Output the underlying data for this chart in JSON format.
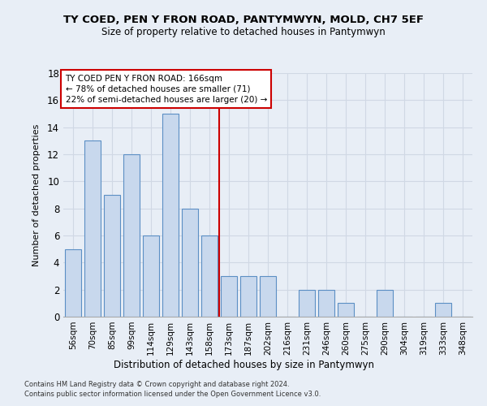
{
  "title": "TY COED, PEN Y FRON ROAD, PANTYMWYN, MOLD, CH7 5EF",
  "subtitle": "Size of property relative to detached houses in Pantymwyn",
  "xlabel": "Distribution of detached houses by size in Pantymwyn",
  "ylabel": "Number of detached properties",
  "categories": [
    "56sqm",
    "70sqm",
    "85sqm",
    "99sqm",
    "114sqm",
    "129sqm",
    "143sqm",
    "158sqm",
    "173sqm",
    "187sqm",
    "202sqm",
    "216sqm",
    "231sqm",
    "246sqm",
    "260sqm",
    "275sqm",
    "290sqm",
    "304sqm",
    "319sqm",
    "333sqm",
    "348sqm"
  ],
  "values": [
    5,
    13,
    9,
    12,
    6,
    15,
    8,
    6,
    3,
    3,
    3,
    0,
    2,
    2,
    1,
    0,
    2,
    0,
    0,
    1,
    0
  ],
  "bar_color": "#c8d8ed",
  "bar_edge_color": "#5b8fc4",
  "vline_x": 7.5,
  "vline_color": "#cc0000",
  "ylim": [
    0,
    18
  ],
  "yticks": [
    0,
    2,
    4,
    6,
    8,
    10,
    12,
    14,
    16,
    18
  ],
  "annotation_title": "TY COED PEN Y FRON ROAD: 166sqm",
  "annotation_line1": "← 78% of detached houses are smaller (71)",
  "annotation_line2": "22% of semi-detached houses are larger (20) →",
  "annotation_box_color": "#ffffff",
  "annotation_box_edge": "#cc0000",
  "footnote1": "Contains HM Land Registry data © Crown copyright and database right 2024.",
  "footnote2": "Contains public sector information licensed under the Open Government Licence v3.0.",
  "background_color": "#e8eef6",
  "grid_color": "#d0d8e4"
}
